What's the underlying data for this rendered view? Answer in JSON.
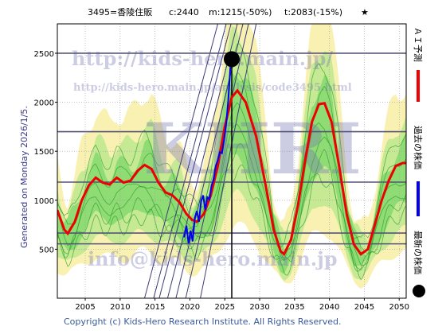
{
  "header": {
    "code_name": "3495=香陵住販",
    "current": "c:2440",
    "min_info": "m:1215(-50%)",
    "target_info": "t:2083(-15%)",
    "star": "★"
  },
  "generated": "Generated on Monday 2026/1/5.",
  "footer": "Copyright (c) Kids-Hero Research Institute. All Rights Reserved.",
  "watermarks": {
    "top": "http://kids-hero.main.jp/",
    "analysis": "http://kids-hero.main.jp/analysis/code3495.html",
    "logo": "KHRI",
    "mail": "info@kids-hero.main.jp"
  },
  "legend": {
    "ai_forecast": "ＡＩ予測",
    "past_price": "過去の株価",
    "latest_price": "最新の株価"
  },
  "colors": {
    "forecast": "#ee0000",
    "price": "#0000ee",
    "marker": "#000000",
    "band_outer": "#f7f0a8",
    "band_mid": "#bde78f",
    "band_inner": "#7fd86a",
    "hline": "#555577",
    "wm_text": "#7070b0"
  },
  "chart_data": {
    "type": "line",
    "xlim": [
      2001,
      2051
    ],
    "ylim": [
      0,
      2800
    ],
    "x_ticks": [
      2005,
      2010,
      2015,
      2020,
      2025,
      2030,
      2035,
      2040,
      2045,
      2050
    ],
    "y_ticks": [
      500,
      1000,
      1500,
      2000,
      2500
    ],
    "horizontal_lines": [
      2500,
      1700,
      1185,
      665,
      555
    ],
    "current_point": {
      "x": 2026.0,
      "y": 2440
    },
    "series": [
      {
        "key": "forecast",
        "points": [
          [
            2001,
            900
          ],
          [
            2002,
            700
          ],
          [
            2002.5,
            660
          ],
          [
            2003.5,
            780
          ],
          [
            2004.5,
            1000
          ],
          [
            2005.5,
            1150
          ],
          [
            2006.5,
            1230
          ],
          [
            2007.5,
            1180
          ],
          [
            2008.5,
            1160
          ],
          [
            2009.5,
            1230
          ],
          [
            2010.5,
            1180
          ],
          [
            2011.5,
            1200
          ],
          [
            2012.5,
            1300
          ],
          [
            2013.5,
            1360
          ],
          [
            2014.5,
            1320
          ],
          [
            2015.5,
            1180
          ],
          [
            2016.5,
            1080
          ],
          [
            2017.5,
            1050
          ],
          [
            2018.5,
            980
          ],
          [
            2019.5,
            860
          ],
          [
            2020.3,
            800
          ],
          [
            2021,
            780
          ],
          [
            2022,
            860
          ],
          [
            2023,
            1050
          ],
          [
            2024,
            1350
          ],
          [
            2025,
            1750
          ],
          [
            2026,
            2050
          ],
          [
            2026.8,
            2120
          ],
          [
            2028,
            2000
          ],
          [
            2029.5,
            1650
          ],
          [
            2031,
            1100
          ],
          [
            2032,
            700
          ],
          [
            2033,
            480
          ],
          [
            2033.5,
            450
          ],
          [
            2034.5,
            600
          ],
          [
            2035.5,
            950
          ],
          [
            2036.5,
            1400
          ],
          [
            2037.5,
            1800
          ],
          [
            2038.5,
            1980
          ],
          [
            2039.3,
            1990
          ],
          [
            2040.3,
            1800
          ],
          [
            2041.5,
            1300
          ],
          [
            2042.5,
            850
          ],
          [
            2043.5,
            550
          ],
          [
            2044.5,
            450
          ],
          [
            2045.5,
            500
          ],
          [
            2046.5,
            750
          ],
          [
            2047.5,
            1000
          ],
          [
            2048.5,
            1200
          ],
          [
            2049.5,
            1350
          ],
          [
            2050.5,
            1380
          ],
          [
            2051,
            1380
          ]
        ]
      },
      {
        "key": "price",
        "points": [
          [
            2019.2,
            620
          ],
          [
            2019.5,
            740
          ],
          [
            2019.8,
            560
          ],
          [
            2020.1,
            690
          ],
          [
            2020.4,
            580
          ],
          [
            2020.7,
            820
          ],
          [
            2021.0,
            890
          ],
          [
            2021.3,
            780
          ],
          [
            2021.6,
            990
          ],
          [
            2021.9,
            1050
          ],
          [
            2022.2,
            900
          ],
          [
            2022.5,
            1030
          ],
          [
            2022.8,
            1010
          ],
          [
            2023.1,
            1150
          ],
          [
            2023.4,
            1210
          ],
          [
            2023.7,
            1350
          ],
          [
            2024.0,
            1410
          ],
          [
            2024.3,
            1490
          ],
          [
            2024.6,
            1480
          ],
          [
            2024.9,
            1620
          ],
          [
            2025.2,
            1780
          ],
          [
            2025.5,
            2020
          ],
          [
            2025.8,
            2350
          ],
          [
            2026.0,
            2440
          ]
        ]
      }
    ]
  }
}
